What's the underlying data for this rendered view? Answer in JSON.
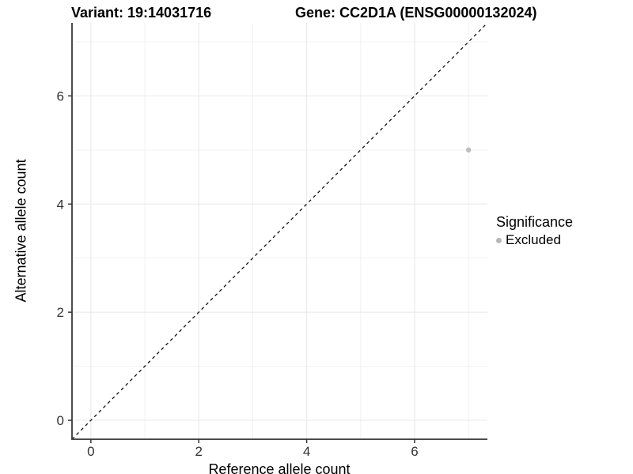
{
  "chart_data": {
    "type": "scatter",
    "title_left": "Variant: 19:14031716",
    "title_right": "Gene: CC2D1A (ENSG00000132024)",
    "xlabel": "Reference allele count",
    "ylabel": "Alternative allele count",
    "xlim": [
      -0.35,
      7.35
    ],
    "ylim": [
      -0.35,
      7.35
    ],
    "x_ticks": [
      0,
      2,
      4,
      6
    ],
    "y_ticks": [
      0,
      2,
      4,
      6
    ],
    "x_minor_gridlines": [
      1,
      3,
      5,
      7
    ],
    "y_minor_gridlines": [
      1,
      3,
      5,
      7
    ],
    "grid": true,
    "points": [
      {
        "x": 7,
        "y": 5,
        "series": "Excluded"
      }
    ],
    "reference_line": {
      "type": "identity y = x",
      "style": "dashed",
      "color": "#000000"
    },
    "legend": {
      "title": "Significance",
      "position": "right",
      "items": [
        {
          "label": "Excluded",
          "color": "#b8b8b8"
        }
      ]
    },
    "colors": {
      "point": "#bdbdbd",
      "grid_major": "#e8e8e8",
      "grid_minor": "#f1f1f1",
      "axis_line": "#4d4d4d",
      "tick_mark": "#333333",
      "tick_label": "#333333",
      "background": "#ffffff"
    }
  }
}
